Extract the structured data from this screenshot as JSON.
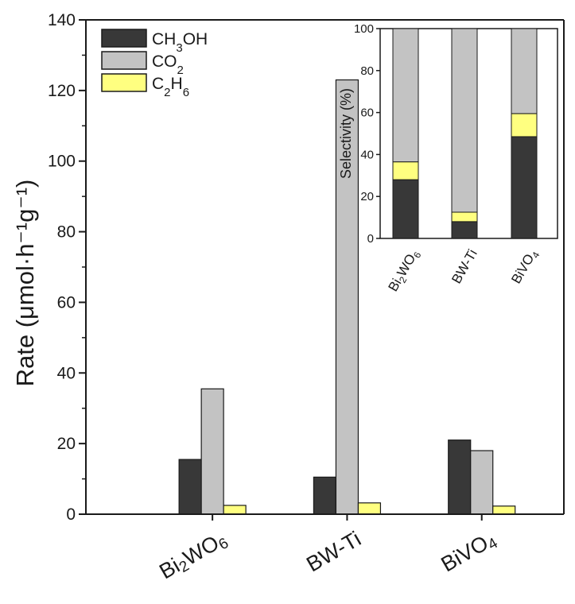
{
  "chart_data": [
    {
      "type": "bar",
      "ylabel": "Rate (μmol·h⁻¹g⁻¹)",
      "ylim": [
        0,
        140
      ],
      "yticks": [
        0,
        20,
        40,
        60,
        80,
        100,
        120,
        140
      ],
      "categories": [
        {
          "label": "Bi2WO6",
          "parts": [
            {
              "t": "Bi"
            },
            {
              "t": "2",
              "sub": true
            },
            {
              "t": "WO"
            },
            {
              "t": "6",
              "sub": true
            }
          ]
        },
        {
          "label": "BW-Ti",
          "parts": [
            {
              "t": "BW-Ti"
            }
          ]
        },
        {
          "label": "BiVO4",
          "parts": [
            {
              "t": "BiVO"
            },
            {
              "t": "4",
              "sub": true
            }
          ]
        }
      ],
      "series": [
        {
          "name": "CH3OH",
          "color": "#383838",
          "values": [
            15.5,
            10.5,
            21.0
          ],
          "parts": [
            {
              "t": "CH"
            },
            {
              "t": "3",
              "sub": true
            },
            {
              "t": "OH"
            }
          ]
        },
        {
          "name": "CO2",
          "color": "#c3c3c3",
          "values": [
            35.5,
            123.0,
            18.0
          ],
          "parts": [
            {
              "t": "CO"
            },
            {
              "t": "2",
              "sub": true
            }
          ]
        },
        {
          "name": "C2H6",
          "color": "#ffff80",
          "values": [
            2.5,
            3.2,
            2.3
          ],
          "parts": [
            {
              "t": "C"
            },
            {
              "t": "2",
              "sub": true
            },
            {
              "t": "H"
            },
            {
              "t": "6",
              "sub": true
            }
          ]
        }
      ],
      "legend_position": "top-left"
    },
    {
      "type": "bar",
      "stacked": true,
      "inset": true,
      "ylabel": "Selectivity (%)",
      "ylim": [
        0,
        100
      ],
      "yticks": [
        0,
        20,
        40,
        60,
        80,
        100
      ],
      "categories": [
        "Bi2WO6",
        "BW-Ti",
        "BiVO4"
      ],
      "series": [
        {
          "name": "CH3OH",
          "color": "#383838",
          "values": [
            28,
            8,
            48.5
          ]
        },
        {
          "name": "C2H6",
          "color": "#ffff80",
          "values": [
            8.5,
            4.5,
            11
          ]
        },
        {
          "name": "CO2",
          "color": "#c3c3c3",
          "values": [
            63.5,
            87.5,
            40.5
          ]
        }
      ]
    }
  ]
}
